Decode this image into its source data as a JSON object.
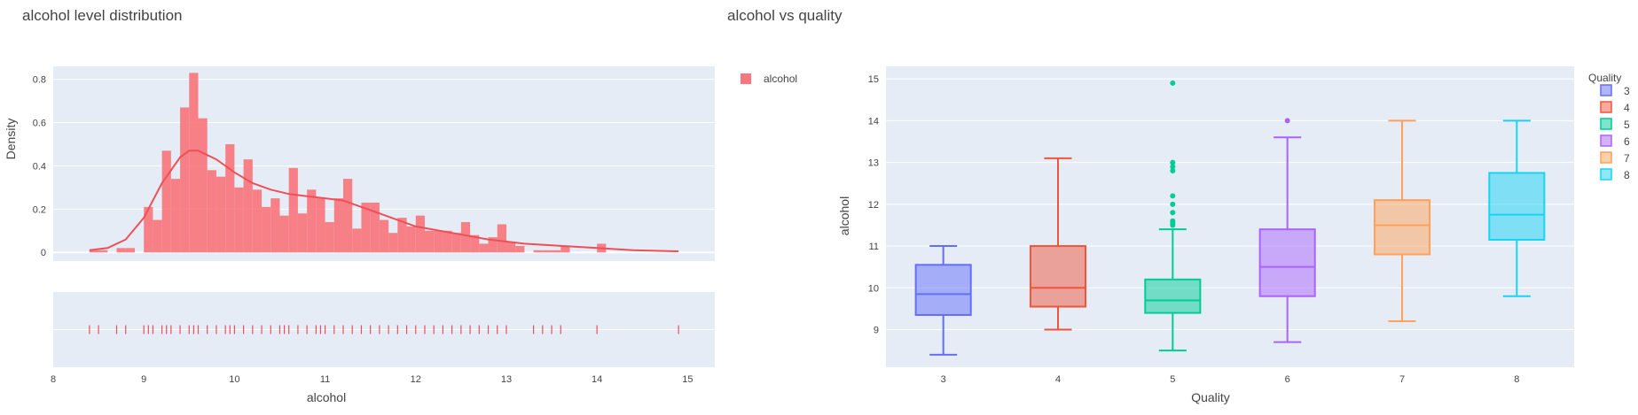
{
  "left": {
    "title": "alcohol level distribution",
    "legend": {
      "label": "alcohol",
      "color": "#f8767d"
    },
    "colors": {
      "bar": "#f8767d",
      "kde": "#ef4f57",
      "rug": "#ef4f57",
      "plot_bg": "#e5ecf6",
      "grid": "#ffffff"
    }
  },
  "right": {
    "title": "alcohol vs quality",
    "legend": {
      "title": "Quality",
      "items": [
        {
          "label": "3",
          "color": "#636efa"
        },
        {
          "label": "4",
          "color": "#ef553b"
        },
        {
          "label": "5",
          "color": "#00cc96"
        },
        {
          "label": "6",
          "color": "#ab63fa"
        },
        {
          "label": "7",
          "color": "#ffa15a"
        },
        {
          "label": "8",
          "color": "#19d3f3"
        }
      ]
    }
  },
  "chart_data": [
    {
      "type": "bar",
      "subtype": "histogram with kde and rug",
      "title": "alcohol level distribution",
      "xlabel": "alcohol",
      "ylabel": "Density",
      "xlim": [
        8,
        15.3
      ],
      "ylim": [
        -0.04,
        0.86
      ],
      "xticks": [
        8,
        9,
        10,
        11,
        12,
        13,
        14,
        15
      ],
      "yticks": [
        0,
        0.2,
        0.4,
        0.6,
        0.8
      ],
      "bin_width": 0.1,
      "bins_x": [
        8.4,
        8.5,
        8.7,
        8.8,
        9.0,
        9.1,
        9.2,
        9.3,
        9.4,
        9.5,
        9.6,
        9.7,
        9.8,
        9.9,
        10.0,
        10.1,
        10.2,
        10.3,
        10.4,
        10.5,
        10.6,
        10.7,
        10.8,
        10.9,
        11.0,
        11.1,
        11.2,
        11.3,
        11.4,
        11.5,
        11.6,
        11.7,
        11.8,
        11.9,
        12.0,
        12.1,
        12.2,
        12.3,
        12.4,
        12.5,
        12.6,
        12.7,
        12.8,
        12.9,
        13.0,
        13.1,
        13.3,
        13.4,
        13.5,
        13.6,
        14.0
      ],
      "density": [
        0.01,
        0.01,
        0.02,
        0.02,
        0.21,
        0.15,
        0.47,
        0.34,
        0.67,
        0.83,
        0.62,
        0.38,
        0.35,
        0.5,
        0.3,
        0.43,
        0.29,
        0.21,
        0.25,
        0.17,
        0.39,
        0.18,
        0.29,
        0.25,
        0.14,
        0.25,
        0.34,
        0.11,
        0.23,
        0.23,
        0.15,
        0.09,
        0.16,
        0.12,
        0.17,
        0.1,
        0.1,
        0.1,
        0.09,
        0.14,
        0.08,
        0.04,
        0.07,
        0.13,
        0.05,
        0.03,
        0.01,
        0.01,
        0.01,
        0.03,
        0.04
      ],
      "kde_x": [
        8.4,
        8.6,
        8.8,
        9.0,
        9.2,
        9.4,
        9.5,
        9.6,
        9.8,
        10.0,
        10.2,
        10.4,
        10.6,
        10.8,
        11.0,
        11.2,
        11.4,
        11.6,
        11.8,
        12.0,
        12.4,
        12.8,
        13.2,
        13.6,
        14.0,
        14.4,
        14.9
      ],
      "kde_y": [
        0.01,
        0.02,
        0.06,
        0.16,
        0.32,
        0.44,
        0.47,
        0.47,
        0.43,
        0.37,
        0.32,
        0.29,
        0.27,
        0.26,
        0.25,
        0.24,
        0.21,
        0.18,
        0.15,
        0.12,
        0.09,
        0.06,
        0.04,
        0.03,
        0.02,
        0.01,
        0.005
      ],
      "rug_x": [
        8.4,
        8.5,
        8.7,
        8.8,
        9.0,
        9.05,
        9.1,
        9.2,
        9.25,
        9.3,
        9.4,
        9.5,
        9.55,
        9.6,
        9.7,
        9.8,
        9.9,
        9.95,
        10.0,
        10.1,
        10.2,
        10.3,
        10.4,
        10.5,
        10.55,
        10.6,
        10.7,
        10.8,
        10.9,
        10.95,
        11.0,
        11.1,
        11.2,
        11.3,
        11.4,
        11.5,
        11.6,
        11.7,
        11.8,
        11.9,
        12.0,
        12.1,
        12.2,
        12.3,
        12.4,
        12.5,
        12.6,
        12.7,
        12.8,
        12.9,
        13.0,
        13.3,
        13.4,
        13.5,
        13.6,
        14.0,
        14.9
      ]
    },
    {
      "type": "box",
      "title": "alcohol vs quality",
      "xlabel": "Quality",
      "ylabel": "alcohol",
      "categories": [
        "3",
        "4",
        "5",
        "6",
        "7",
        "8"
      ],
      "ylim": [
        8.1,
        15.3
      ],
      "yticks": [
        9,
        10,
        11,
        12,
        13,
        14,
        15
      ],
      "boxes": [
        {
          "q1": 9.35,
          "median": 9.85,
          "q3": 10.55,
          "lower": 8.4,
          "upper": 11.0,
          "outliers": []
        },
        {
          "q1": 9.55,
          "median": 10.0,
          "q3": 11.0,
          "lower": 9.0,
          "upper": 13.1,
          "outliers": []
        },
        {
          "q1": 9.4,
          "median": 9.7,
          "q3": 10.2,
          "lower": 8.5,
          "upper": 11.4,
          "outliers": [
            11.5,
            11.55,
            11.6,
            11.8,
            12.0,
            12.2,
            12.8,
            12.9,
            13.0,
            14.9
          ]
        },
        {
          "q1": 9.8,
          "median": 10.5,
          "q3": 11.4,
          "lower": 8.7,
          "upper": 13.6,
          "outliers": [
            14.0
          ]
        },
        {
          "q1": 10.8,
          "median": 11.5,
          "q3": 12.1,
          "lower": 9.2,
          "upper": 14.0,
          "outliers": []
        },
        {
          "q1": 11.15,
          "median": 11.75,
          "q3": 12.75,
          "lower": 9.8,
          "upper": 14.0,
          "outliers": []
        }
      ]
    }
  ]
}
